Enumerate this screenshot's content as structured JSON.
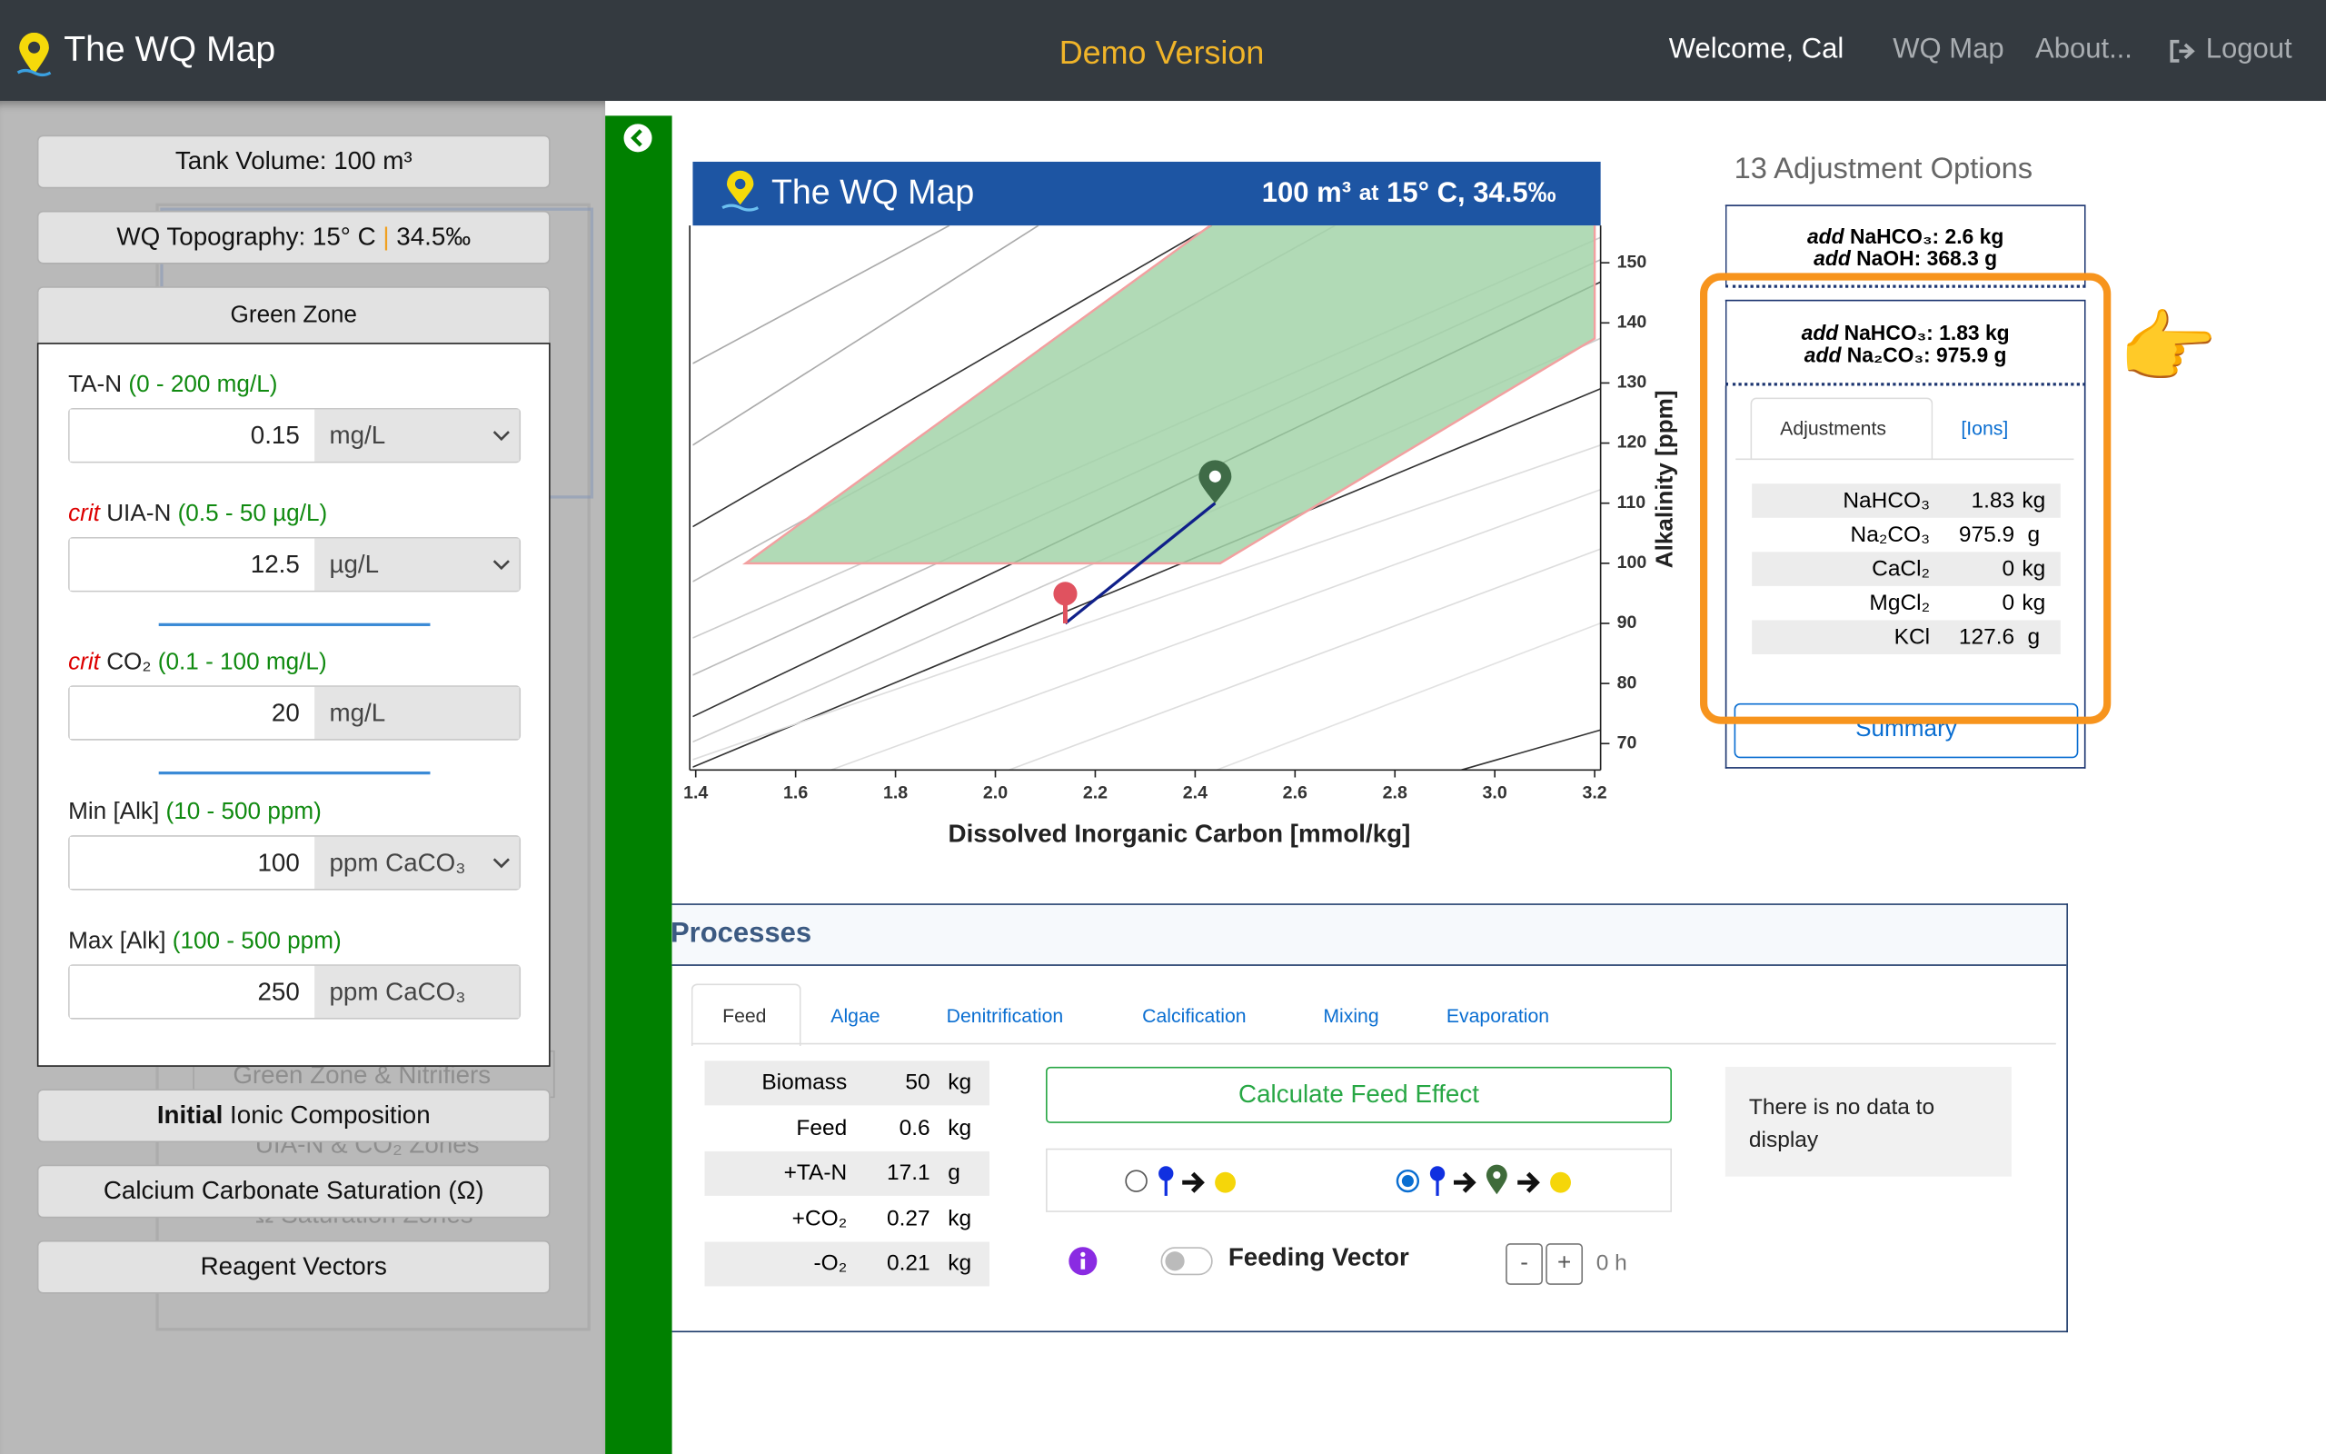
{
  "navbar": {
    "brand": "The WQ Map",
    "center": "Demo Version",
    "welcome": "Welcome, Cal",
    "links": [
      "WQ Map",
      "About...",
      "Logout"
    ]
  },
  "sidebar": {
    "tank_volume": "Tank Volume: 100 m³",
    "topography": {
      "left": "WQ Topography: 15° C",
      "right": "34.5‰"
    },
    "panel_title": "Green Zone",
    "fields": [
      {
        "label": "TA-N",
        "range": "(0 - 200 mg/L)",
        "value": 0.15,
        "unit": "mg/L",
        "select": true
      },
      {
        "crit": "crit",
        "label": "UIA-N",
        "range": "(0.5 - 50 µg/L)",
        "value": 12.5,
        "unit": "µg/L",
        "select": true
      },
      {
        "crit": "crit",
        "label": "CO₂",
        "range": "(0.1 - 100 mg/L)",
        "value": 20,
        "unit": "mg/L",
        "select": false
      },
      {
        "label": "Min [Alk]",
        "range": "(10 - 500 ppm)",
        "value": 100,
        "unit": "ppm CaCO₃",
        "select": true
      },
      {
        "label": "Max [Alk]",
        "range": "(100 - 500 ppm)",
        "value": 250,
        "unit": "ppm CaCO₃",
        "select": false
      }
    ],
    "buttons": [
      {
        "bold": "Initial",
        "text": "Ionic Composition"
      },
      {
        "text": "Calcium Carbonate Saturation (Ω)"
      },
      {
        "text": "Reagent Vectors"
      }
    ],
    "background_buttons": [
      "Green Zone & Nitrifiers",
      "UIA-N & CO₂ Zones",
      "Ω Saturation Zones"
    ]
  },
  "chart": {
    "header_brand": "The WQ Map",
    "header_info": {
      "volume": "100 m³",
      "at": "at",
      "conditions": "15° C, 34.5‰"
    },
    "xlabel": "Dissolved Inorganic Carbon [mmol/kg]",
    "ylabel": "Alkalinity [ppm]",
    "xlim": [
      1.4,
      3.2
    ],
    "xticks": [
      1.4,
      1.6,
      1.8,
      {
        "value": 2,
        "label": "2.0"
      },
      2.2,
      2.4,
      2.6,
      2.8,
      {
        "value": 3,
        "label": "3.0"
      },
      3.2
    ],
    "y2lim": [
      65.6,
      156.2
    ],
    "y2ticks": [
      70,
      80,
      90,
      100,
      110,
      120,
      130,
      140,
      150
    ],
    "green_zone": {
      "x": [
        1.5,
        2.45,
        3.2,
        3.2
      ],
      "y": [
        100,
        100,
        137.4,
        202.7
      ],
      "color": "#a3d4a9",
      "edge": "#f2a0a0"
    },
    "current": {
      "x": 2.14,
      "y": 90,
      "color": "#e0525f"
    },
    "target": {
      "x": 2.44,
      "y": 110,
      "color": "#3f6b47"
    },
    "vector_color": "#10208a"
  },
  "adjustments": {
    "title": "13 Adjustment Options",
    "options": [
      [
        {
          "verb": "add",
          "text": "NaHCO₃: 2.6 kg"
        },
        {
          "verb": "add",
          "text": "NaOH: 368.3 g"
        }
      ],
      [
        {
          "verb": "add",
          "text": "NaHCO₃: 1.83 kg"
        },
        {
          "verb": "add",
          "text": "Na₂CO₃: 975.9 g"
        }
      ]
    ],
    "tabs": [
      "Adjustments",
      "[Ions]"
    ],
    "rows": [
      [
        "NaHCO₃",
        1.83,
        "kg"
      ],
      [
        "Na₂CO₃",
        975.9,
        "g"
      ],
      [
        "CaCl₂",
        0,
        "kg"
      ],
      [
        "MgCl₂",
        0,
        "kg"
      ],
      [
        "KCl",
        127.6,
        "g"
      ]
    ],
    "summary": "Summary",
    "pointer": "👉"
  },
  "processes": {
    "title": "Processes",
    "tabs": [
      "Feed",
      "Algae",
      "Denitrification",
      "Calcification",
      "Mixing",
      "Evaporation"
    ],
    "rows": [
      [
        "Biomass",
        50,
        "kg"
      ],
      [
        "Feed",
        0.6,
        "kg"
      ],
      [
        "+TA-N",
        17.1,
        "g"
      ],
      [
        "+CO₂",
        0.27,
        "kg"
      ],
      [
        "-O₂",
        0.21,
        "kg"
      ]
    ],
    "button": "Calculate Feed Effect",
    "toggle_label": "Feeding Vector",
    "minus": "-",
    "plus": "+",
    "time": "0 h",
    "empty": "There is no data to display"
  }
}
